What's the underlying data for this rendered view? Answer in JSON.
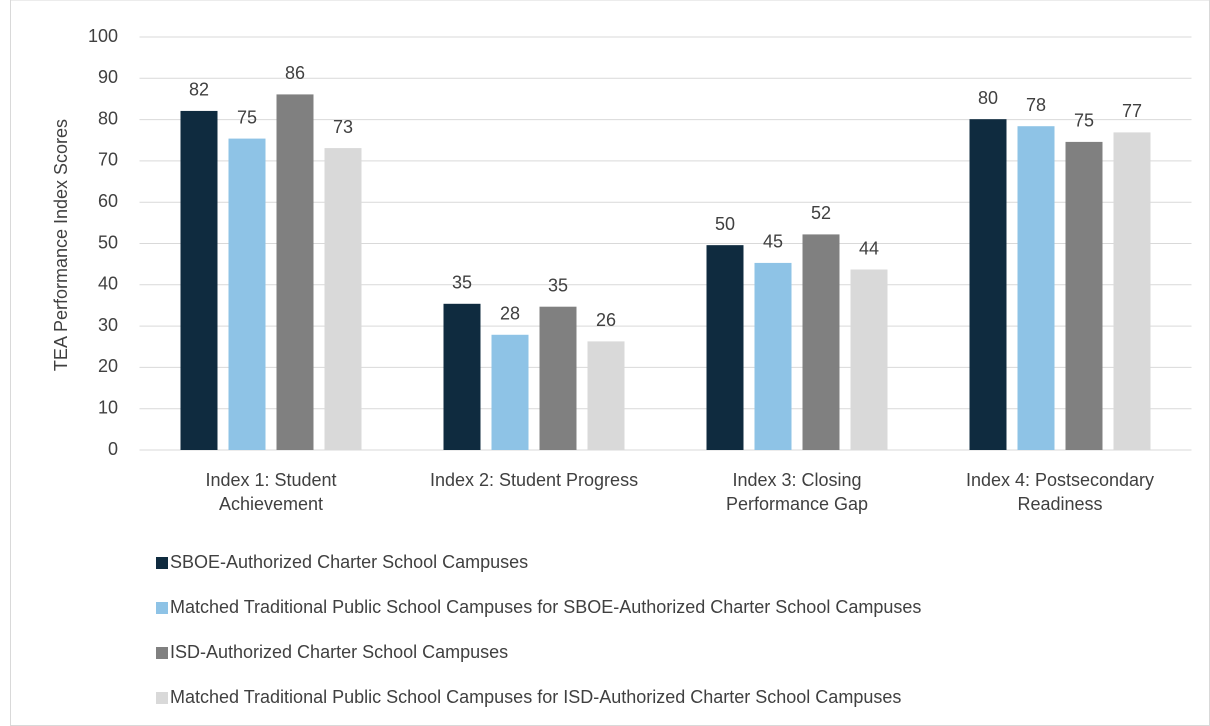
{
  "chart_data": {
    "type": "bar",
    "y_label": "TEA Performance Index Scores",
    "categories": [
      "Index 1: Student Achievement",
      "Index 2: Student Progress",
      "Index 3: Closing Performance Gap",
      "Index 4: Postsecondary Readiness"
    ],
    "series": [
      {
        "name": "SBOE-Authorized Charter School Campuses",
        "color": "#0f2b3f",
        "values": [
          82.1,
          35.4,
          49.6,
          80.1
        ],
        "value_labels": [
          "82",
          "35",
          "50",
          "80"
        ]
      },
      {
        "name": "Matched Traditional Public School Campuses for SBOE-Authorized Charter School Campuses",
        "color": "#8ec3e6",
        "values": [
          75.4,
          27.9,
          45.3,
          78.4
        ],
        "value_labels": [
          "75",
          "28",
          "45",
          "78"
        ]
      },
      {
        "name": "ISD-Authorized Charter School Campuses",
        "color": "#808080",
        "values": [
          86.1,
          34.7,
          52.2,
          74.6
        ],
        "value_labels": [
          "86",
          "35",
          "52",
          "75"
        ]
      },
      {
        "name": "Matched Traditional Public School Campuses for  ISD-Authorized Charter School Campuses",
        "color": "#d9d9d9",
        "values": [
          73.1,
          26.3,
          43.7,
          76.9
        ],
        "value_labels": [
          "73",
          "26",
          "44",
          "77"
        ]
      }
    ],
    "ylim": [
      0,
      100
    ],
    "yticks": [
      0,
      10,
      20,
      30,
      40,
      50,
      60,
      70,
      80,
      90,
      100
    ],
    "grid": true,
    "legend": "bottom"
  }
}
